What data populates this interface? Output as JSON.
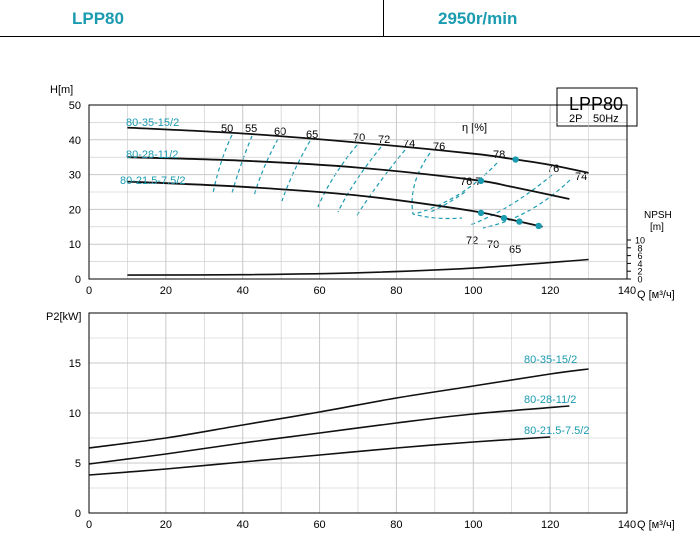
{
  "header": {
    "model": "LPP80",
    "speed": "2950r/min"
  },
  "colors": {
    "accent": "#1a9bb0",
    "grid": "#c8c8c8",
    "curve": "#111111"
  },
  "chart_data": [
    {
      "type": "line",
      "title": "LPP80",
      "subtitle_left": "2P",
      "subtitle_right": "50Hz",
      "ylabel": "H[m]",
      "ylabel_right": "NPSH",
      "ylabel_right_unit": "[m]",
      "xlabel": "Q [м³/ч]",
      "eta_label": "η [%]",
      "xlim": [
        0,
        140
      ],
      "ylim": [
        0,
        50
      ],
      "x_ticks": [
        "0",
        "20",
        "40",
        "60",
        "80",
        "100",
        "120",
        "140"
      ],
      "y_ticks": [
        "0",
        "10",
        "20",
        "30",
        "40",
        "50"
      ],
      "npsh_ticks": [
        "0",
        "2",
        "4",
        "6",
        "8",
        "10"
      ],
      "series": [
        {
          "name": "80-35-15/2",
          "x": [
            10,
            40,
            70,
            100,
            110,
            120,
            130
          ],
          "values": [
            43.5,
            41.8,
            39.2,
            36.0,
            34.5,
            32.8,
            30.5
          ]
        },
        {
          "name": "80-28-11/2",
          "x": [
            10,
            40,
            70,
            100,
            110,
            125
          ],
          "values": [
            35.0,
            34.0,
            32.0,
            28.5,
            26.5,
            23.0
          ]
        },
        {
          "name": "80-21.5-7.5/2",
          "x": [
            10,
            40,
            70,
            100,
            110,
            118
          ],
          "values": [
            28.0,
            26.5,
            24.0,
            19.5,
            17.0,
            15.0
          ]
        }
      ],
      "npsh": {
        "x": [
          10,
          40,
          70,
          100,
          130
        ],
        "values": [
          1.0,
          1.1,
          1.6,
          2.8,
          5.0
        ]
      },
      "eta_labels": [
        "50",
        "55",
        "60",
        "65",
        "70",
        "72",
        "74",
        "76",
        "78",
        "76",
        "74",
        "76.7",
        "72",
        "70",
        "65"
      ]
    },
    {
      "type": "line",
      "ylabel": "P2[kW]",
      "xlabel": "Q [м³/ч]",
      "xlim": [
        0,
        140
      ],
      "ylim": [
        0,
        20
      ],
      "x_ticks": [
        "0",
        "20",
        "40",
        "60",
        "80",
        "100",
        "120",
        "140"
      ],
      "y_ticks": [
        "0",
        "5",
        "10",
        "15"
      ],
      "series": [
        {
          "name": "80-35-15/2",
          "x": [
            0,
            20,
            40,
            60,
            80,
            100,
            120,
            130
          ],
          "values": [
            6.5,
            7.5,
            8.8,
            10.1,
            11.5,
            12.7,
            13.9,
            14.4
          ]
        },
        {
          "name": "80-28-11/2",
          "x": [
            0,
            20,
            40,
            60,
            80,
            100,
            125
          ],
          "values": [
            4.9,
            5.9,
            7.0,
            8.0,
            9.0,
            9.9,
            10.7
          ]
        },
        {
          "name": "80-21.5-7.5/2",
          "x": [
            0,
            20,
            40,
            60,
            80,
            100,
            120
          ],
          "values": [
            3.8,
            4.4,
            5.1,
            5.8,
            6.5,
            7.1,
            7.6
          ]
        }
      ]
    }
  ]
}
